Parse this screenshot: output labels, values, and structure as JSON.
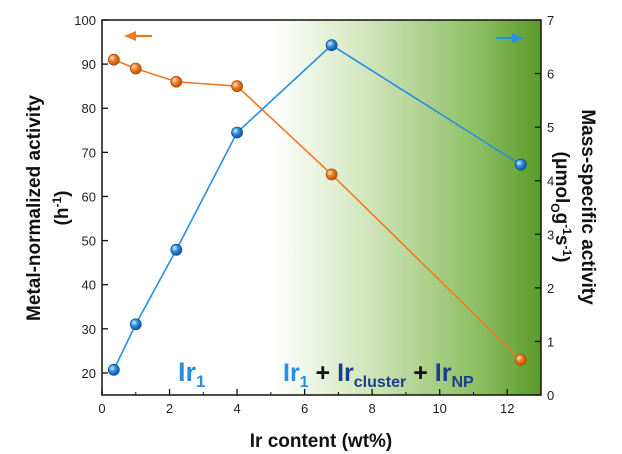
{
  "chart_data": {
    "type": "line",
    "x_axis": {
      "label": "Ir content (wt%)",
      "range": [
        0,
        13
      ],
      "ticks": [
        "0",
        "2",
        "4",
        "6",
        "8",
        "10",
        "12"
      ]
    },
    "y_left": {
      "label_line1": "Metal-normalized activity",
      "label_line2_main": "(h",
      "label_line2_sup": "-1",
      "label_line2_end": ")",
      "range": [
        15,
        100
      ],
      "ticks": [
        "20",
        "30",
        "40",
        "50",
        "60",
        "70",
        "80",
        "90",
        "100"
      ]
    },
    "y_right": {
      "label_line1": "Mass-specific activity",
      "label_line2_a": "(μmol",
      "label_line2_sub": "O",
      "label_line2_b": "g",
      "label_line2_sup1": "-1",
      "label_line2_c": "s",
      "label_line2_sup2": "-1",
      "label_line2_d": ")",
      "range": [
        0,
        7
      ],
      "ticks": [
        "0",
        "1",
        "2",
        "3",
        "4",
        "5",
        "6",
        "7"
      ]
    },
    "series": [
      {
        "axis": "left",
        "color": "#f07a22",
        "x": [
          0.35,
          1.0,
          2.2,
          4.0,
          6.8,
          12.4
        ],
        "y": [
          91,
          89,
          86,
          85,
          65,
          23
        ]
      },
      {
        "axis": "right",
        "color": "#2a8fe0",
        "x": [
          0.35,
          1.0,
          2.2,
          4.0,
          6.8,
          12.4
        ],
        "y": [
          0.47,
          1.32,
          2.71,
          4.9,
          6.53,
          4.3
        ]
      }
    ],
    "annotations": {
      "left_region": {
        "base": "Ir",
        "sub": "1"
      },
      "right_region": {
        "p1_base": "Ir",
        "p1_sub": "1",
        "plus1": " + ",
        "p2_base": "Ir",
        "p2_sub": "cluster",
        "plus2": " + ",
        "p3_base": "Ir",
        "p3_sub": "NP"
      }
    },
    "colors": {
      "orange": "#f07a22",
      "blue": "#2a8fe0",
      "green": "#5a9a2a",
      "dark_blue": "#1b3f8c"
    }
  }
}
